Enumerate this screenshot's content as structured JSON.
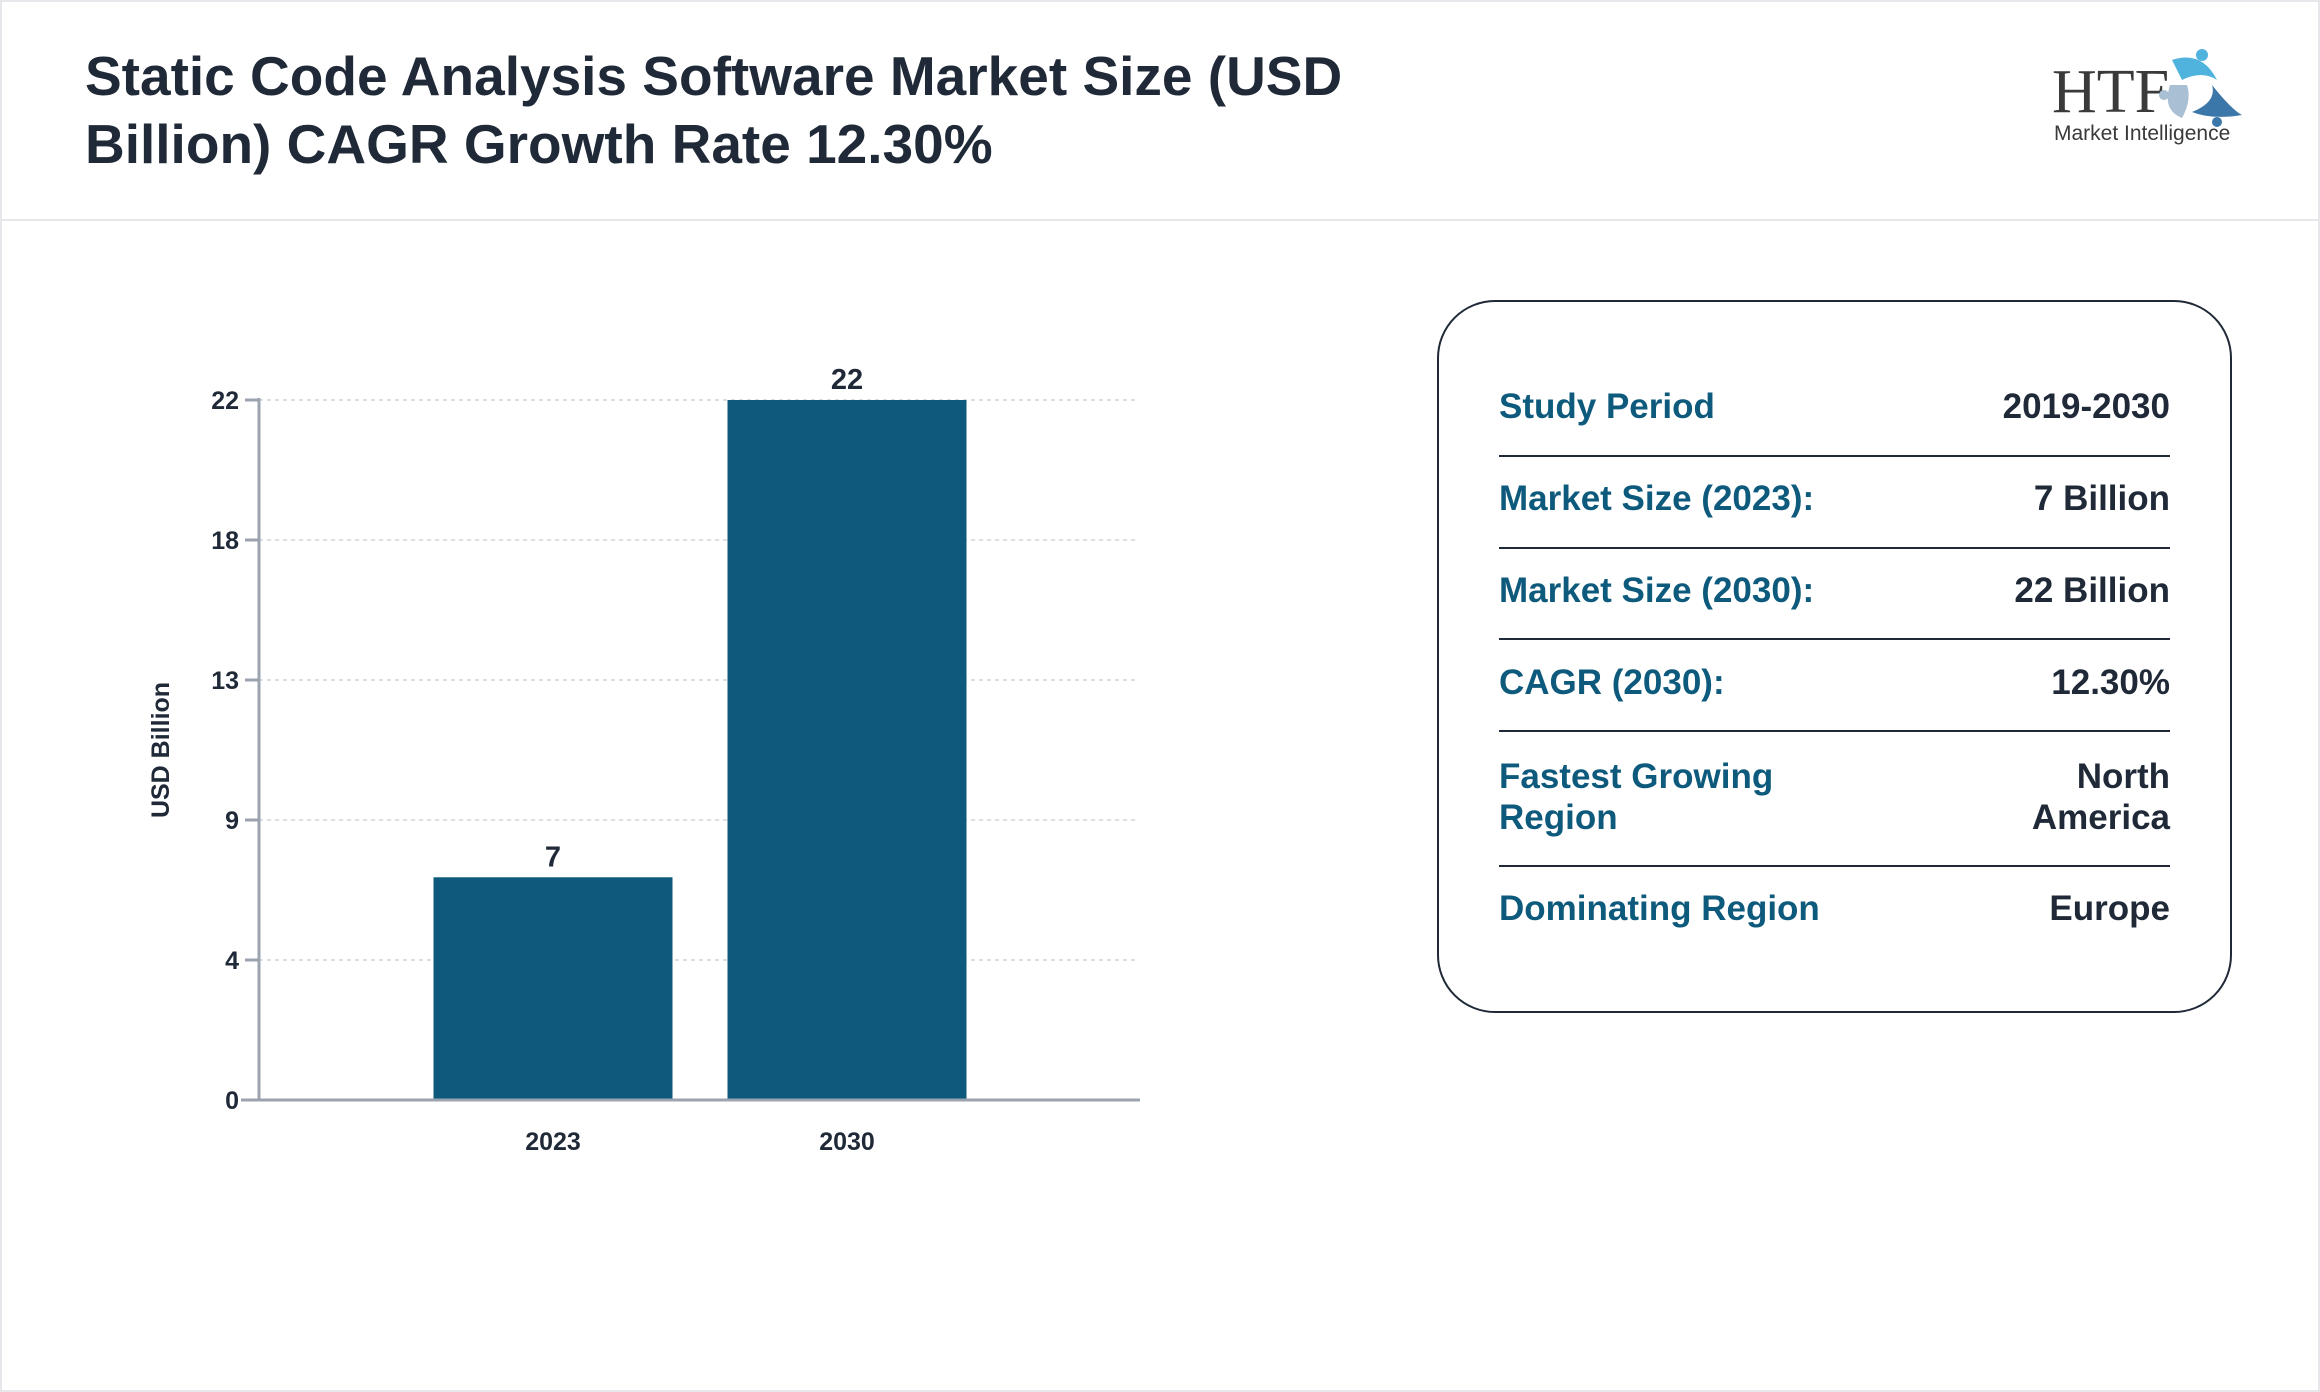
{
  "header": {
    "title": "Static Code Analysis Software Market Size (USD Billion) CAGR Growth Rate 12.30%",
    "logo_text": "HTF Market Intelligence"
  },
  "colors": {
    "bar": "#0d5a7c",
    "title": "#1f2937",
    "label": "#0d5a7c",
    "axis": "#9ca3af"
  },
  "chart_data": {
    "type": "bar",
    "title": "",
    "xlabel": "",
    "ylabel": "USD Billion",
    "categories": [
      "2023",
      "2030"
    ],
    "values": [
      7,
      22
    ],
    "data_labels": [
      "7",
      "22"
    ],
    "yticks": [
      0,
      4,
      9,
      13,
      18,
      22
    ],
    "ylim": [
      0,
      22
    ],
    "grid": true,
    "legend": "none"
  },
  "summary": {
    "rows": [
      {
        "label": "Study Period",
        "value": "2019-2030"
      },
      {
        "label": "Market Size (2023):",
        "value": "7 Billion"
      },
      {
        "label": "Market Size (2030):",
        "value": "22 Billion"
      },
      {
        "label": "CAGR (2030):",
        "value": "12.30%"
      },
      {
        "label": "Fastest Growing Region",
        "value": "North America"
      },
      {
        "label": "Dominating Region",
        "value": "Europe"
      }
    ]
  }
}
